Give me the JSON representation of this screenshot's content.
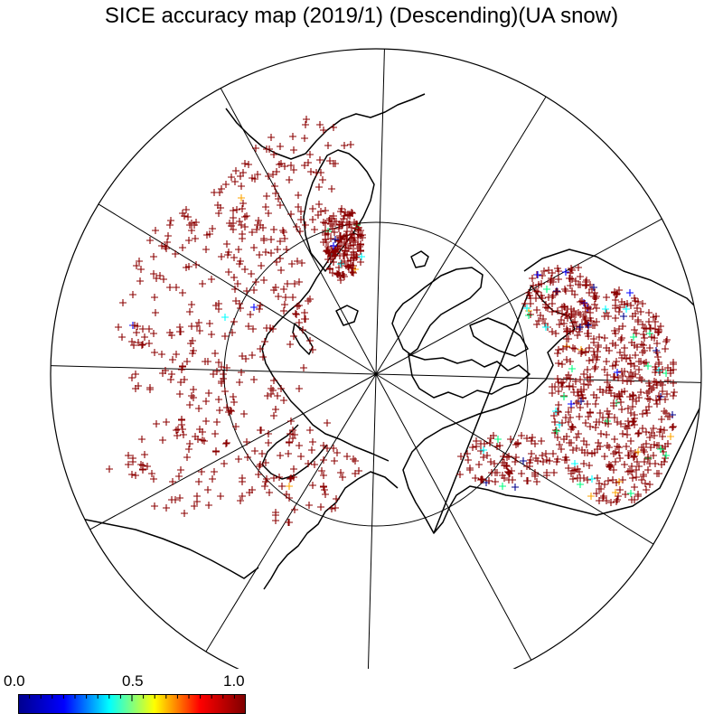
{
  "title": "SICE accuracy map (2019/1)  (Descending)(UA snow)",
  "colorbar": {
    "min_label": "0.0",
    "mid_label": "0.5",
    "max_label": "1.0",
    "min": 0.0,
    "max": 1.0,
    "colormap": "jet",
    "stops": [
      "#00008f",
      "#0000ff",
      "#00ffff",
      "#ffff00",
      "#ff0000",
      "#800000"
    ]
  },
  "map": {
    "projection": "north polar stereographic",
    "meridian_interval_deg": 30,
    "inner_circle": true,
    "marker": "plus",
    "dominant_marker_color": "#8b0000",
    "secondary_marker_colors": [
      "#00008b",
      "#0000ff",
      "#00ffff",
      "#00ff7f",
      "#ffa500"
    ]
  }
}
